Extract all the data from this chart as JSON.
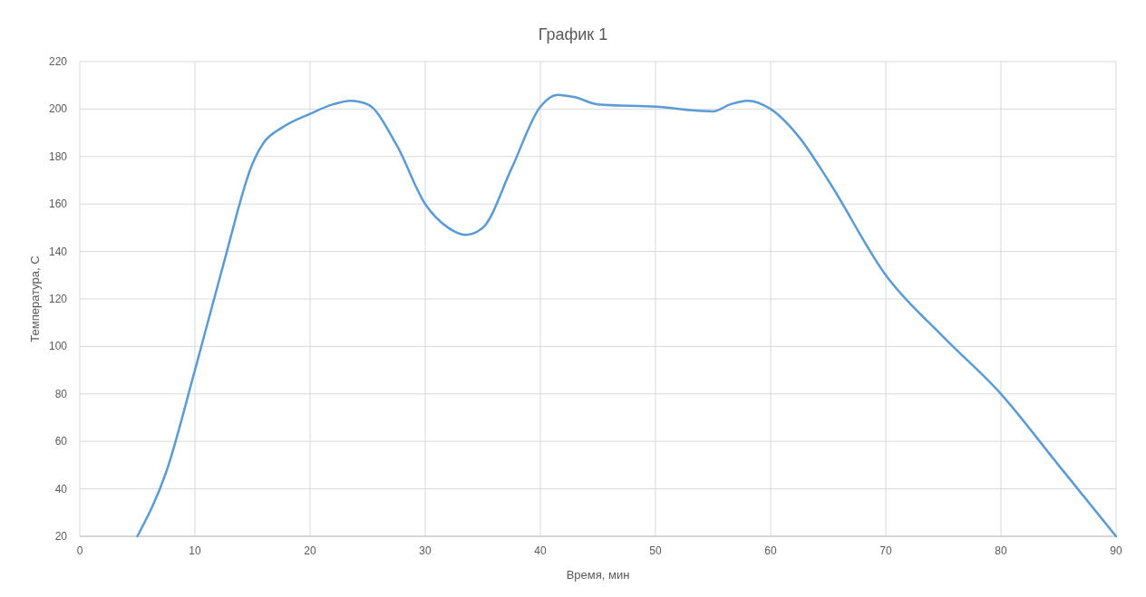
{
  "chart_data": {
    "type": "line",
    "title": "График 1",
    "xlabel": "Время, мин",
    "ylabel": "Температура, С",
    "xlim": [
      0,
      90
    ],
    "xticks": [
      0,
      10,
      20,
      30,
      40,
      50,
      60,
      70,
      80,
      90
    ],
    "ylim": [
      20,
      220
    ],
    "yticks": [
      20,
      40,
      60,
      80,
      100,
      120,
      140,
      160,
      180,
      200,
      220
    ],
    "grid": true,
    "series": [
      {
        "color": "#5b9bd5",
        "x": [
          5,
          7.5,
          10,
          12.5,
          15,
          16,
          17.5,
          20,
          22,
          23.5,
          25,
          27.5,
          30,
          32,
          33.5,
          35,
          37.5,
          40,
          41.5,
          43,
          45,
          50,
          55,
          56.5,
          58,
          60,
          62.5,
          65,
          70,
          75,
          80,
          85,
          90
        ],
        "values": [
          20,
          47,
          90,
          135,
          177,
          186,
          192,
          198,
          202,
          203.5,
          202,
          185,
          160,
          150,
          147,
          150,
          175,
          201,
          206,
          205,
          202,
          201,
          199,
          202,
          203.5,
          200,
          188,
          170,
          130,
          104,
          80,
          50,
          20
        ]
      }
    ]
  }
}
